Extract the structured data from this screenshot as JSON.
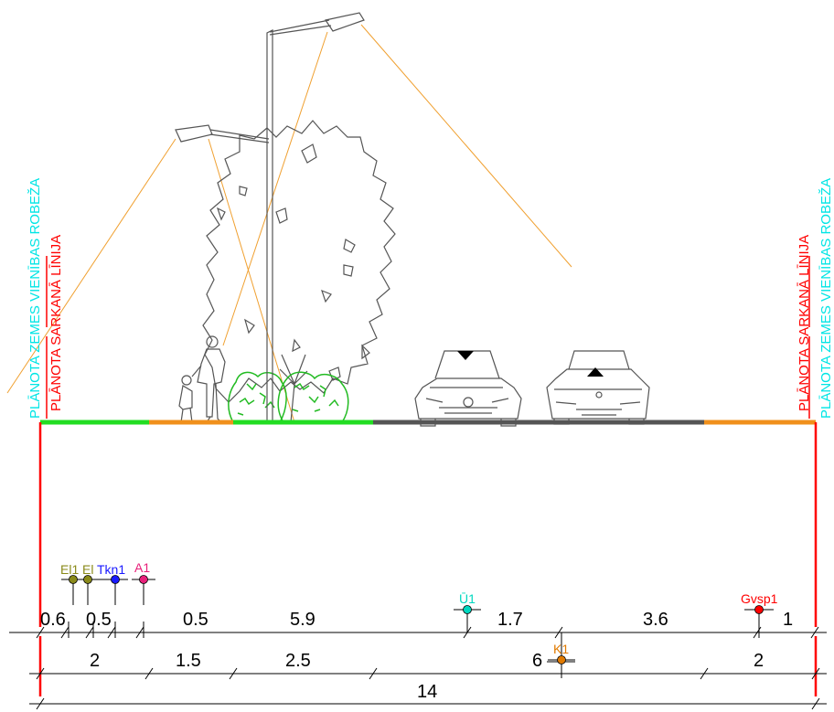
{
  "boundary_labels": {
    "left_cyan": "PLĀNOTA ZEMES VIENĪBAS ROBEŽA",
    "left_red": "PLĀNOTA SARKANĀ LĪNIJA",
    "right_red": "PLĀNOTA SARKANĀ LĪNIJA",
    "right_cyan": "PLĀNOTA ZEMES VIENĪBAS ROBEŽA"
  },
  "colors": {
    "cyan": "#00e5e5",
    "red": "#ff0000",
    "green": "#22dd22",
    "orange": "#f0901c",
    "asphalt": "#555555",
    "light_line": "#f0a030",
    "el": "#8a8a1a",
    "tkn": "#1a1aff",
    "a": "#e8207a",
    "u": "#00d8c0",
    "k": "#e07a00",
    "gvsp": "#ff0000"
  },
  "icons": {
    "lamp": "street-lamp-icon",
    "tree": "tree-icon",
    "bush": "bush-icon",
    "pedestrians": "pedestrians-icon",
    "car": "car-front-icon",
    "direction_down": "triangle-down-icon",
    "direction_up": "triangle-up-icon"
  },
  "utilities": [
    {
      "label": "El1",
      "color": "#8a8a1a"
    },
    {
      "label": "El",
      "color": "#8a8a1a"
    },
    {
      "label": "Tkn1",
      "color": "#1a1aff"
    },
    {
      "label": "A1",
      "color": "#e8207a"
    },
    {
      "label": "Ū1",
      "color": "#00d8c0"
    },
    {
      "label": "K1",
      "color": "#e07a00"
    },
    {
      "label": "Gvsp1",
      "color": "#ff0000"
    }
  ],
  "dimensions": {
    "row1": [
      "0.6",
      "0.5",
      "0.5",
      "5.9",
      "1.7",
      "3.6",
      "1"
    ],
    "row2": [
      "2",
      "1.5",
      "2.5",
      "6",
      "2"
    ],
    "row3": [
      "14"
    ]
  }
}
